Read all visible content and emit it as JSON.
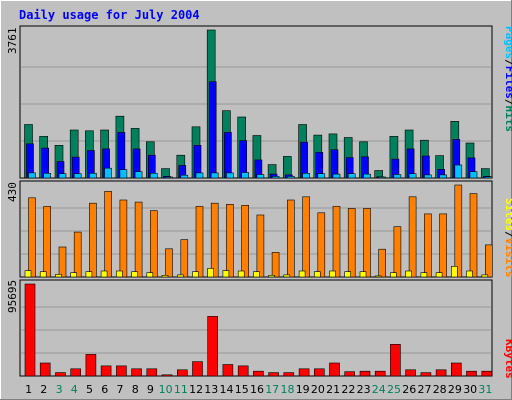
{
  "title": "Daily usage for July 2004",
  "colors": {
    "background": "#c0c0c0",
    "frame_light": "#ffffff",
    "frame_dark": "#808080",
    "grid": "#999999",
    "title": "#0000ff",
    "hits": "#00805c",
    "files": "#0000ff",
    "pages": "#00c0ff",
    "visits": "#ff8000",
    "sites": "#ffff00",
    "kbytes": "#ff0000",
    "weekday": "#000000",
    "weekend": "#00805c"
  },
  "legend": {
    "pages": "Pages",
    "files": "Files",
    "hits": "Hits",
    "sites": "Sites",
    "visits": "Visits",
    "kbytes": "KBytes",
    "sep": "/"
  },
  "chart_data": [
    {
      "type": "bar",
      "title": "Daily usage for July 2004",
      "ylabel": "3761",
      "ylim": [
        0,
        3761
      ],
      "grid": true,
      "categories": [
        "1",
        "2",
        "3",
        "4",
        "5",
        "6",
        "7",
        "8",
        "9",
        "10",
        "11",
        "12",
        "13",
        "14",
        "15",
        "16",
        "17",
        "18",
        "19",
        "20",
        "21",
        "22",
        "23",
        "24",
        "25",
        "26",
        "27",
        "28",
        "29",
        "30",
        "31"
      ],
      "weekend": [
        "3",
        "4",
        "10",
        "11",
        "17",
        "18",
        "24",
        "25",
        "31"
      ],
      "series": [
        {
          "name": "Hits",
          "values": [
            1360,
            1060,
            830,
            1220,
            1200,
            1220,
            1570,
            1260,
            920,
            240,
            580,
            1300,
            3761,
            1710,
            1550,
            1080,
            340,
            550,
            1360,
            1090,
            1120,
            1030,
            920,
            190,
            1060,
            1220,
            960,
            570,
            1440,
            890,
            240
          ]
        },
        {
          "name": "Files",
          "values": [
            870,
            760,
            420,
            530,
            700,
            740,
            1160,
            740,
            580,
            40,
            320,
            830,
            2450,
            1160,
            950,
            460,
            100,
            80,
            910,
            650,
            720,
            520,
            540,
            30,
            480,
            740,
            560,
            220,
            980,
            510,
            40
          ]
        },
        {
          "name": "Pages",
          "values": [
            130,
            120,
            110,
            110,
            120,
            250,
            210,
            160,
            120,
            20,
            70,
            130,
            130,
            130,
            140,
            90,
            40,
            40,
            120,
            110,
            100,
            110,
            100,
            20,
            90,
            110,
            80,
            80,
            330,
            160,
            30
          ]
        }
      ]
    },
    {
      "type": "bar",
      "ylabel": "430",
      "ylim": [
        0,
        430
      ],
      "grid": true,
      "categories": [
        "1",
        "2",
        "3",
        "4",
        "5",
        "6",
        "7",
        "8",
        "9",
        "10",
        "11",
        "12",
        "13",
        "14",
        "15",
        "16",
        "17",
        "18",
        "19",
        "20",
        "21",
        "22",
        "23",
        "24",
        "25",
        "26",
        "27",
        "28",
        "29",
        "30",
        "31"
      ],
      "series": [
        {
          "name": "Visits",
          "values": [
            370,
            330,
            140,
            210,
            345,
            400,
            360,
            350,
            310,
            132,
            175,
            330,
            345,
            340,
            335,
            290,
            115,
            360,
            375,
            300,
            330,
            320,
            320,
            130,
            235,
            375,
            295,
            295,
            430,
            390,
            150
          ]
        },
        {
          "name": "Sites",
          "values": [
            30,
            25,
            12,
            20,
            25,
            28,
            28,
            25,
            20,
            8,
            10,
            25,
            40,
            30,
            28,
            25,
            8,
            10,
            28,
            25,
            28,
            25,
            25,
            5,
            20,
            28,
            20,
            20,
            50,
            28,
            10
          ]
        }
      ]
    },
    {
      "type": "bar",
      "ylabel": "95695",
      "ylim": [
        0,
        95695
      ],
      "grid": true,
      "categories": [
        "1",
        "2",
        "3",
        "4",
        "5",
        "6",
        "7",
        "8",
        "9",
        "10",
        "11",
        "12",
        "13",
        "14",
        "15",
        "16",
        "17",
        "18",
        "19",
        "20",
        "21",
        "22",
        "23",
        "24",
        "25",
        "26",
        "27",
        "28",
        "29",
        "30",
        "31"
      ],
      "series": [
        {
          "name": "KBytes",
          "values": [
            95695,
            13500,
            3500,
            7500,
            22500,
            10500,
            10500,
            7500,
            7500,
            1200,
            6500,
            15000,
            62000,
            12000,
            10500,
            5000,
            3500,
            3500,
            7500,
            7500,
            13500,
            4500,
            5000,
            5000,
            33000,
            6500,
            3500,
            6500,
            13500,
            5000,
            5000
          ]
        }
      ]
    }
  ]
}
